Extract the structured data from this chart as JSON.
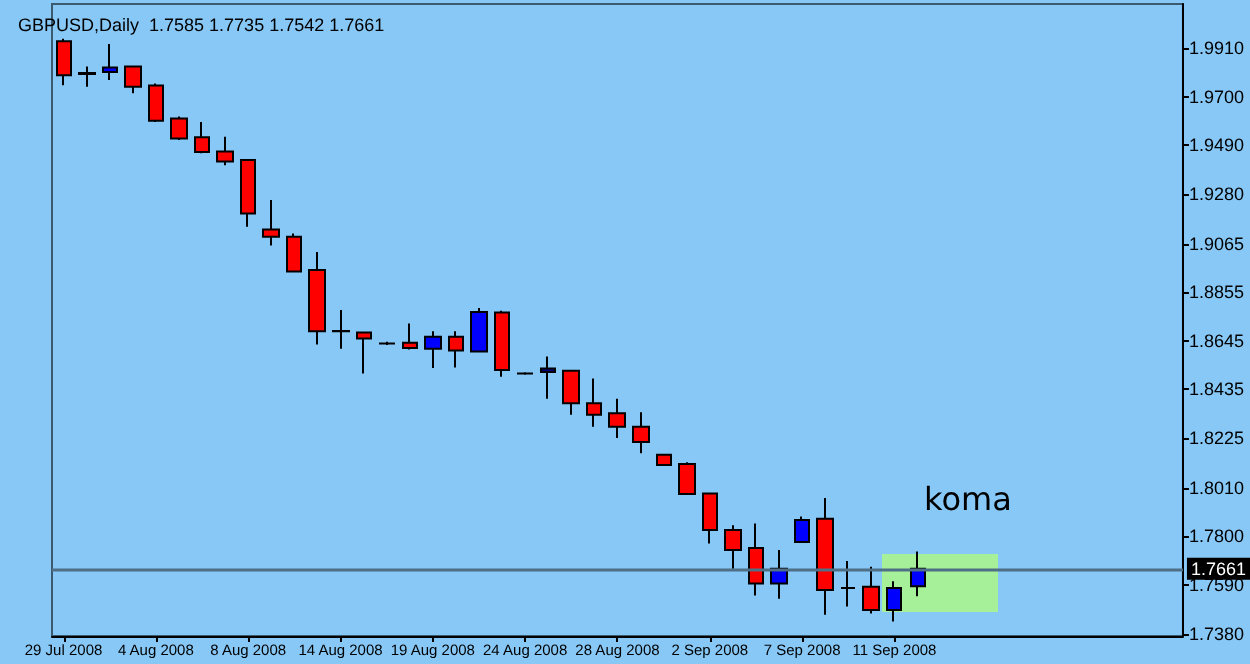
{
  "chart_data": {
    "type": "candlestick",
    "title": "GBPUSD,Daily  1.7585 1.7735 1.7542 1.7661",
    "categories": [
      "29 Jul 2008",
      null,
      null,
      null,
      "4 Aug 2008",
      null,
      null,
      null,
      "8 Aug 2008",
      null,
      null,
      null,
      "14 Aug 2008",
      null,
      null,
      null,
      "19 Aug 2008",
      null,
      null,
      null,
      "24 Aug 2008",
      null,
      null,
      null,
      "28 Aug 2008",
      null,
      null,
      null,
      "2 Sep 2008",
      null,
      null,
      null,
      "7 Sep 2008",
      null,
      null,
      null,
      "11 Sep 2008",
      null,
      null,
      null,
      null,
      null,
      null,
      null,
      null,
      null,
      null,
      null,
      null
    ],
    "ohlc": [
      [
        1.9939,
        1.995,
        1.9749,
        1.9792
      ],
      [
        1.9798,
        1.983,
        1.9743,
        1.9802
      ],
      [
        1.9806,
        1.9927,
        1.9772,
        1.9826
      ],
      [
        1.983,
        1.983,
        1.9714,
        1.9743
      ],
      [
        1.9748,
        1.9757,
        1.959,
        1.9596
      ],
      [
        1.9605,
        1.9614,
        1.9513,
        1.9519
      ],
      [
        1.9524,
        1.959,
        1.9455,
        1.9461
      ],
      [
        1.9463,
        1.9527,
        1.9403,
        1.942
      ],
      [
        1.9426,
        1.943,
        1.9138,
        1.9195
      ],
      [
        1.9126,
        1.9253,
        1.9057,
        1.9095
      ],
      [
        1.9095,
        1.9109,
        1.8945,
        1.8945
      ],
      [
        1.8951,
        1.9029,
        1.8629,
        1.8686
      ],
      [
        1.8686,
        1.8778,
        1.8611,
        1.8688
      ],
      [
        1.8681,
        1.8681,
        1.8504,
        1.8655
      ],
      [
        1.8634,
        1.8641,
        1.8627,
        1.8634
      ],
      [
        1.8637,
        1.872,
        1.8608,
        1.8614
      ],
      [
        1.8611,
        1.8686,
        1.8528,
        1.8663
      ],
      [
        1.8663,
        1.8686,
        1.853,
        1.8603
      ],
      [
        1.8599,
        1.8787,
        1.8599,
        1.877
      ],
      [
        1.8767,
        1.8775,
        1.849,
        1.8519
      ],
      [
        1.8504,
        1.8509,
        1.8499,
        1.8504
      ],
      [
        1.851,
        1.8577,
        1.8395,
        1.8525
      ],
      [
        1.8516,
        1.8516,
        1.8326,
        1.8375
      ],
      [
        1.8375,
        1.8482,
        1.8274,
        1.8326
      ],
      [
        1.8332,
        1.8395,
        1.8225,
        1.8274
      ],
      [
        1.8274,
        1.8337,
        1.8159,
        1.8208
      ],
      [
        1.8153,
        1.8157,
        1.8107,
        1.8109
      ],
      [
        1.8113,
        1.8121,
        1.798,
        1.7983
      ],
      [
        1.7986,
        1.799,
        1.777,
        1.7828
      ],
      [
        1.7828,
        1.7848,
        1.7661,
        1.7741
      ],
      [
        1.775,
        1.7856,
        1.7545,
        1.7597
      ],
      [
        1.7597,
        1.7741,
        1.7531,
        1.7661
      ],
      [
        1.7776,
        1.7886,
        1.7776,
        1.7871
      ],
      [
        1.7877,
        1.7966,
        1.7462,
        1.7569
      ],
      [
        1.7577,
        1.7694,
        1.7497,
        1.7577
      ],
      [
        1.7583,
        1.7669,
        1.7467,
        1.7482
      ],
      [
        1.7482,
        1.7606,
        1.7433,
        1.7577
      ],
      [
        1.7585,
        1.7735,
        1.7542,
        1.7661
      ],
      null,
      null,
      null,
      null,
      null,
      null,
      null,
      null,
      null,
      null,
      null
    ],
    "colors": [
      "#ff0000",
      "#000080",
      "#0000ff",
      "#ff0000",
      "#ff0000",
      "#ff0000",
      "#ff0000",
      "#ff0000",
      "#ff0000",
      "#ff0000",
      "#ff0000",
      "#ff0000",
      "#000000",
      "#ff0000",
      "#000000",
      "#ff0000",
      "#0000ff",
      "#ff0000",
      "#0000ff",
      "#ff0000",
      "#000000",
      "#000080",
      "#ff0000",
      "#ff0000",
      "#ff0000",
      "#ff0000",
      "#ff0000",
      "#ff0000",
      "#ff0000",
      "#ff0000",
      "#ff0000",
      "#0000ff",
      "#0000ff",
      "#ff0000",
      "#000000",
      "#ff0000",
      "#0000ff",
      "#0000ff",
      null,
      null,
      null,
      null,
      null,
      null,
      null,
      null,
      null,
      null,
      null
    ],
    "ylim": [
      1.737,
      2.01
    ],
    "yticks": [
      {
        "value": 1.991,
        "label": "1.9910"
      },
      {
        "value": 1.97,
        "label": "1.9700"
      },
      {
        "value": 1.949,
        "label": "1.9490"
      },
      {
        "value": 1.928,
        "label": "1.9280"
      },
      {
        "value": 1.9065,
        "label": "1.9065"
      },
      {
        "value": 1.8855,
        "label": "1.8855"
      },
      {
        "value": 1.8645,
        "label": "1.8645"
      },
      {
        "value": 1.8435,
        "label": "1.8435"
      },
      {
        "value": 1.8225,
        "label": "1.8225"
      },
      {
        "value": 1.801,
        "label": "1.8010"
      },
      {
        "value": 1.78,
        "label": "1.7800"
      },
      {
        "value": 1.759,
        "label": "1.7590"
      },
      {
        "value": 1.738,
        "label": "1.7380"
      }
    ],
    "ref_lines": [
      {
        "axis": "y",
        "value": 1.7661,
        "label": "1.7661",
        "color": "#4f6f86"
      }
    ],
    "annotations": [
      "koma"
    ],
    "grid": false
  }
}
